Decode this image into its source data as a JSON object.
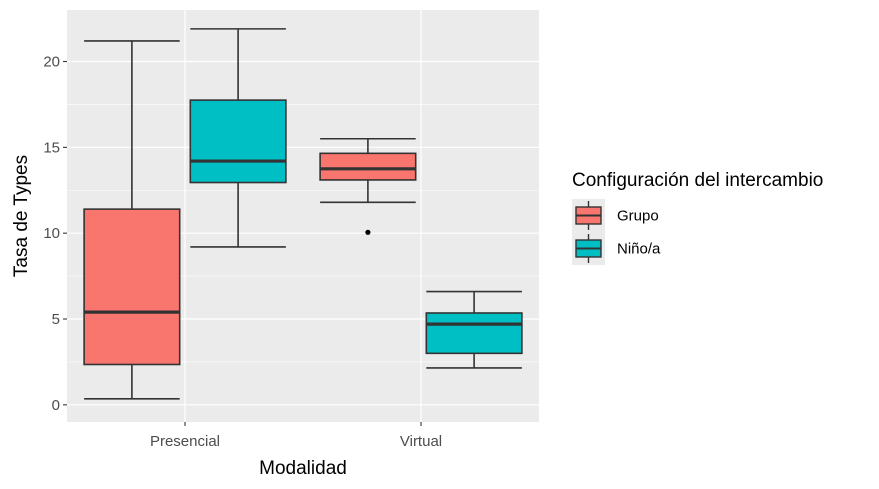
{
  "chart_data": {
    "type": "boxplot",
    "xlabel": "Modalidad",
    "ylabel": "Tasa de Types",
    "categories": [
      "Presencial",
      "Virtual"
    ],
    "ylim": [
      -1,
      23
    ],
    "yticks": [
      0,
      5,
      10,
      15,
      20
    ],
    "grid": true,
    "legend": {
      "title": "Configuración del intercambio",
      "placement": "right"
    },
    "series": [
      {
        "name": "Grupo",
        "color": "#F8766D",
        "boxes": [
          {
            "category": "Presencial",
            "min": 0.35,
            "q1": 2.35,
            "median": 5.4,
            "q3": 11.4,
            "max": 21.2,
            "outliers": []
          },
          {
            "category": "Virtual",
            "min": 11.8,
            "q1": 13.1,
            "median": 13.75,
            "q3": 14.65,
            "max": 15.5,
            "outliers": [
              10.05
            ]
          }
        ]
      },
      {
        "name": "Niño/a",
        "color": "#00BFC4",
        "boxes": [
          {
            "category": "Presencial",
            "min": 9.2,
            "q1": 12.95,
            "median": 14.2,
            "q3": 17.75,
            "max": 21.9,
            "outliers": []
          },
          {
            "category": "Virtual",
            "min": 2.15,
            "q1": 3.0,
            "median": 4.7,
            "q3": 5.35,
            "max": 6.6,
            "outliers": []
          }
        ]
      }
    ]
  }
}
